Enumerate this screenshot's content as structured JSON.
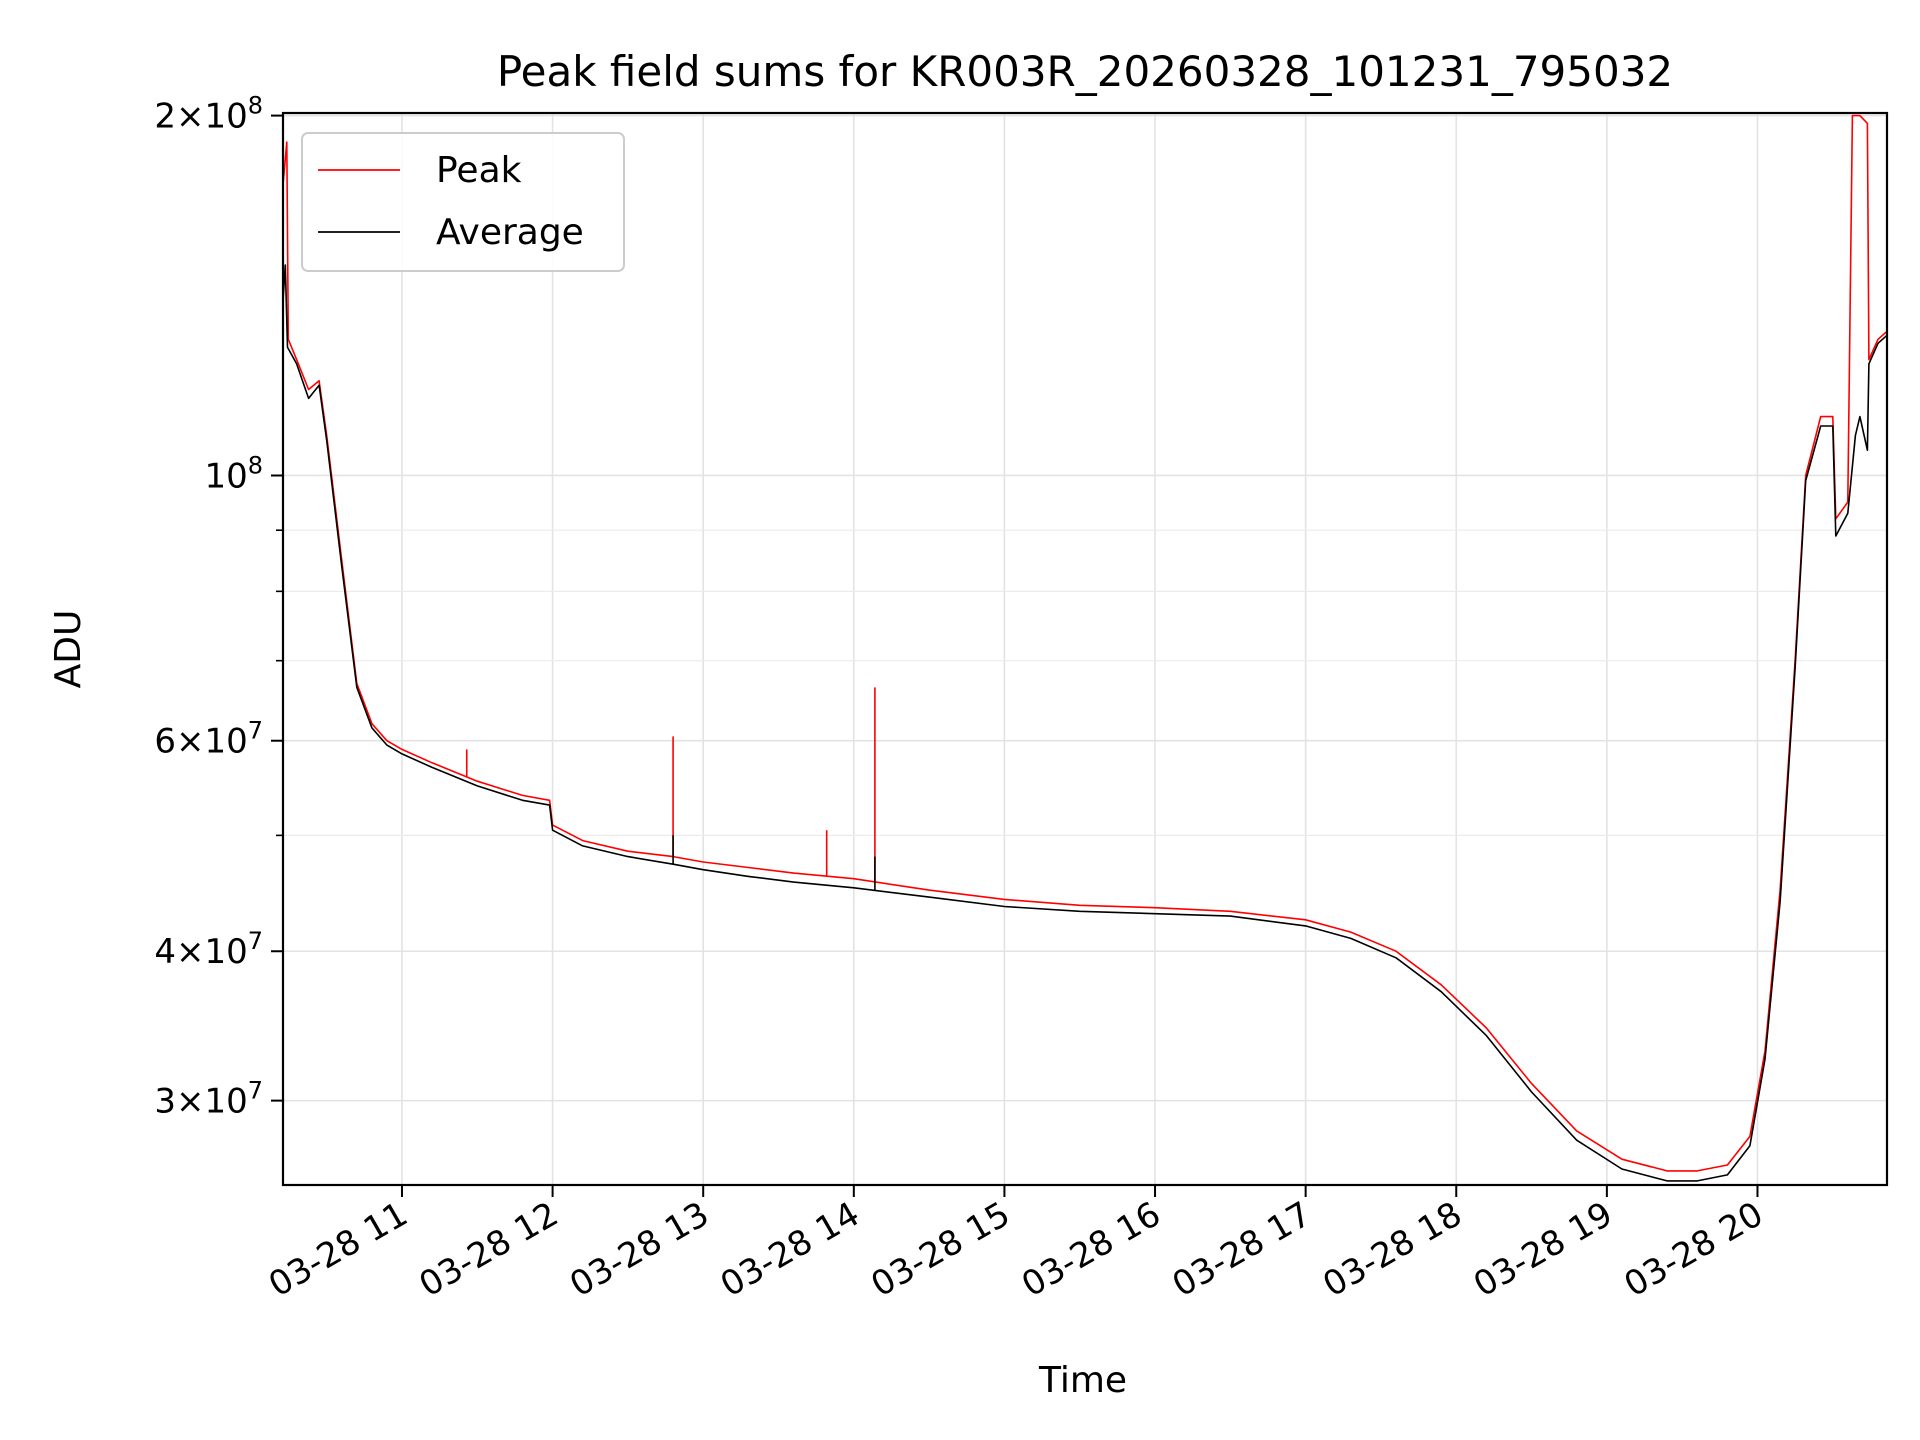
{
  "chart_data": {
    "type": "line",
    "title": "Peak field sums for KR003R_20260328_101231_795032",
    "xlabel": "Time",
    "ylabel": "ADU",
    "yscale": "log",
    "xlim_hours": [
      10.21,
      20.86
    ],
    "ylim": [
      25500000,
      201000000
    ],
    "grid": true,
    "legend_location": "top-left",
    "x_tick_hours": [
      11,
      12,
      13,
      14,
      15,
      16,
      17,
      18,
      19,
      20
    ],
    "x_tick_labels": [
      "03-28 11",
      "03-28 12",
      "03-28 13",
      "03-28 14",
      "03-28 15",
      "03-28 16",
      "03-28 17",
      "03-28 18",
      "03-28 19",
      "03-28 20"
    ],
    "y_ticks": [
      {
        "value": 30000000,
        "mantissa": "3",
        "exponent": "7"
      },
      {
        "value": 40000000,
        "mantissa": "4",
        "exponent": "7"
      },
      {
        "value": 60000000,
        "mantissa": "6",
        "exponent": "7"
      },
      {
        "value": 100000000,
        "mantissa": "",
        "exponent": "8"
      },
      {
        "value": 200000000,
        "mantissa": "2",
        "exponent": "8"
      }
    ],
    "y_minor_ticks": [
      50000000,
      70000000,
      80000000,
      90000000
    ],
    "series": [
      {
        "name": "Peak",
        "color": "#ff0000",
        "points": [
          [
            10.21,
            175000000
          ],
          [
            10.235,
            190000000
          ],
          [
            10.245,
            130000000
          ],
          [
            10.3,
            125000000
          ],
          [
            10.38,
            118000000
          ],
          [
            10.45,
            120000000
          ],
          [
            10.5,
            108000000
          ],
          [
            10.6,
            85000000
          ],
          [
            10.7,
            67000000
          ],
          [
            10.8,
            62000000
          ],
          [
            10.9,
            60000000
          ],
          [
            11.0,
            59000000
          ],
          [
            11.2,
            57500000
          ],
          [
            11.5,
            55500000
          ],
          [
            11.8,
            54000000
          ],
          [
            11.98,
            53500000
          ],
          [
            12.0,
            51000000
          ],
          [
            12.2,
            49500000
          ],
          [
            12.5,
            48500000
          ],
          [
            12.8,
            48000000
          ],
          [
            13.0,
            47500000
          ],
          [
            13.3,
            47000000
          ],
          [
            13.6,
            46500000
          ],
          [
            14.0,
            46000000
          ],
          [
            14.5,
            45000000
          ],
          [
            15.0,
            44200000
          ],
          [
            15.5,
            43700000
          ],
          [
            16.0,
            43500000
          ],
          [
            16.5,
            43200000
          ],
          [
            17.0,
            42500000
          ],
          [
            17.3,
            41500000
          ],
          [
            17.6,
            40000000
          ],
          [
            17.9,
            37500000
          ],
          [
            18.2,
            34500000
          ],
          [
            18.5,
            31000000
          ],
          [
            18.8,
            28300000
          ],
          [
            19.1,
            26800000
          ],
          [
            19.4,
            26200000
          ],
          [
            19.6,
            26200000
          ],
          [
            19.8,
            26500000
          ],
          [
            19.95,
            28000000
          ],
          [
            20.05,
            33000000
          ],
          [
            20.15,
            45000000
          ],
          [
            20.25,
            70000000
          ],
          [
            20.32,
            100000000
          ],
          [
            20.42,
            112000000
          ],
          [
            20.5,
            112000000
          ],
          [
            20.52,
            92000000
          ],
          [
            20.6,
            95000000
          ],
          [
            20.63,
            200000000
          ],
          [
            20.68,
            200000000
          ],
          [
            20.73,
            197000000
          ],
          [
            20.74,
            125000000
          ],
          [
            20.8,
            130000000
          ],
          [
            20.86,
            132000000
          ]
        ],
        "spikes": [
          [
            11.43,
            59000000
          ],
          [
            12.8,
            60500000
          ],
          [
            13.82,
            50500000
          ],
          [
            14.14,
            66500000
          ]
        ]
      },
      {
        "name": "Average",
        "color": "#000000",
        "points": [
          [
            10.21,
            140000000
          ],
          [
            10.225,
            150000000
          ],
          [
            10.24,
            128000000
          ],
          [
            10.3,
            124000000
          ],
          [
            10.38,
            116000000
          ],
          [
            10.45,
            119000000
          ],
          [
            10.5,
            107000000
          ],
          [
            10.6,
            84000000
          ],
          [
            10.7,
            66500000
          ],
          [
            10.8,
            61500000
          ],
          [
            10.9,
            59500000
          ],
          [
            11.0,
            58500000
          ],
          [
            11.2,
            57000000
          ],
          [
            11.5,
            55000000
          ],
          [
            11.8,
            53500000
          ],
          [
            11.98,
            53000000
          ],
          [
            12.0,
            50500000
          ],
          [
            12.2,
            49000000
          ],
          [
            12.5,
            48000000
          ],
          [
            12.8,
            47300000
          ],
          [
            13.0,
            46800000
          ],
          [
            13.3,
            46200000
          ],
          [
            13.6,
            45700000
          ],
          [
            14.0,
            45200000
          ],
          [
            14.5,
            44400000
          ],
          [
            15.0,
            43600000
          ],
          [
            15.5,
            43200000
          ],
          [
            16.0,
            43000000
          ],
          [
            16.5,
            42800000
          ],
          [
            17.0,
            42000000
          ],
          [
            17.3,
            41000000
          ],
          [
            17.6,
            39500000
          ],
          [
            17.9,
            37000000
          ],
          [
            18.2,
            34000000
          ],
          [
            18.5,
            30500000
          ],
          [
            18.8,
            27800000
          ],
          [
            19.1,
            26300000
          ],
          [
            19.4,
            25700000
          ],
          [
            19.6,
            25700000
          ],
          [
            19.8,
            26000000
          ],
          [
            19.95,
            27500000
          ],
          [
            20.05,
            32500000
          ],
          [
            20.15,
            44000000
          ],
          [
            20.25,
            69000000
          ],
          [
            20.32,
            99000000
          ],
          [
            20.42,
            110000000
          ],
          [
            20.5,
            110000000
          ],
          [
            20.52,
            89000000
          ],
          [
            20.6,
            93000000
          ],
          [
            20.65,
            108000000
          ],
          [
            20.68,
            112000000
          ],
          [
            20.73,
            105000000
          ],
          [
            20.74,
            124000000
          ],
          [
            20.8,
            129000000
          ],
          [
            20.86,
            131000000
          ]
        ],
        "spikes": [
          [
            12.8,
            50000000
          ],
          [
            14.14,
            48000000
          ]
        ]
      }
    ]
  }
}
